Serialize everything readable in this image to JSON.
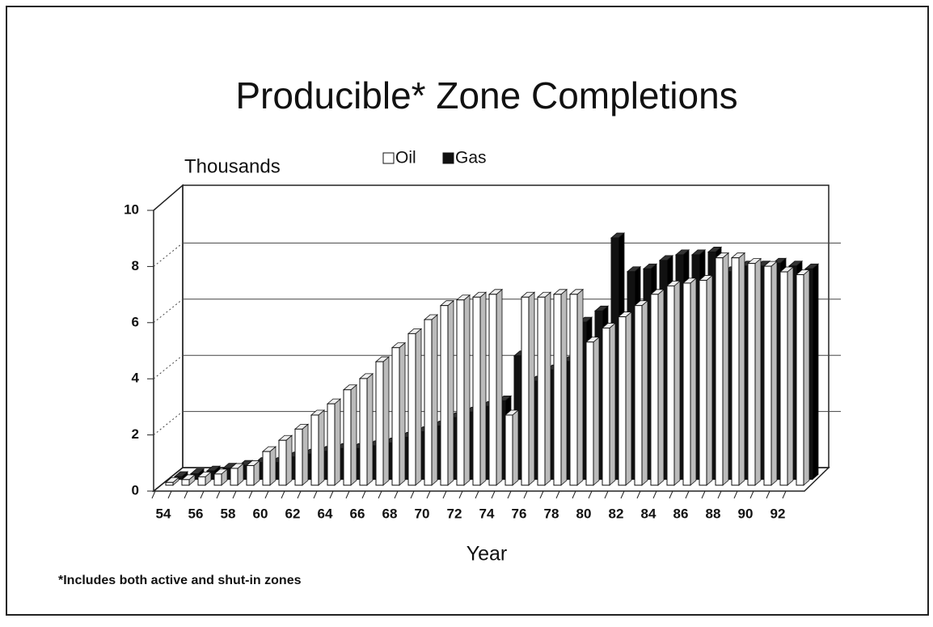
{
  "chart_data": {
    "type": "bar3d",
    "title": "Producible* Zone Completions",
    "y_label": "Thousands",
    "x_label": "Year",
    "note": "*Includes both active and shut-in zones",
    "categories": [
      "54",
      null,
      "56",
      null,
      "58",
      null,
      "60",
      null,
      "62",
      null,
      "64",
      null,
      "66",
      null,
      "68",
      null,
      "70",
      null,
      "72",
      null,
      "74",
      null,
      "76",
      null,
      "78",
      null,
      "80",
      null,
      "82",
      null,
      "84",
      null,
      "86",
      null,
      "88",
      null,
      "90",
      null,
      "92",
      null
    ],
    "series": [
      {
        "name": "Oil",
        "color": "#ffffff",
        "values": [
          0.1,
          0.2,
          0.3,
          0.4,
          0.6,
          0.7,
          1.2,
          1.6,
          2.0,
          2.5,
          2.9,
          3.4,
          3.8,
          4.4,
          4.9,
          5.4,
          5.9,
          6.4,
          6.6,
          6.7,
          6.8,
          2.5,
          6.7,
          6.7,
          6.8,
          6.8,
          5.1,
          5.6,
          6.0,
          6.4,
          6.8,
          7.1,
          7.2,
          7.3,
          8.1,
          8.1,
          7.9,
          7.8,
          7.6,
          7.5
        ]
      },
      {
        "name": "Gas",
        "color": "#111111",
        "values": [
          0.1,
          0.2,
          0.3,
          0.4,
          0.5,
          0.6,
          0.6,
          0.8,
          0.9,
          1.0,
          1.1,
          1.1,
          1.2,
          1.3,
          1.5,
          1.7,
          1.9,
          2.2,
          2.4,
          2.6,
          2.8,
          4.4,
          3.5,
          3.9,
          4.2,
          5.6,
          6.0,
          8.6,
          7.4,
          7.5,
          7.8,
          8.0,
          8.0,
          8.1,
          7.4,
          7.6,
          7.6,
          7.7,
          7.6,
          7.5
        ]
      }
    ],
    "ylim": [
      0,
      10
    ],
    "yticks": [
      0,
      2,
      4,
      6,
      8,
      10
    ],
    "grid": true
  }
}
